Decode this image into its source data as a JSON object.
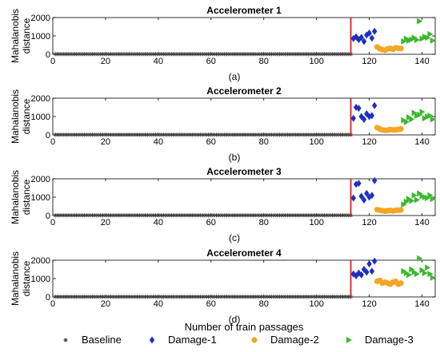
{
  "chart_data": [
    {
      "type": "scatter",
      "title": "Accelerometer 1",
      "caption": "(a)",
      "ylabel": [
        "Mahalanobis",
        "distance"
      ],
      "xlim": [
        0,
        145
      ],
      "ylim": [
        0,
        2000
      ],
      "xticks": [
        0,
        20,
        40,
        60,
        80,
        100,
        120,
        140
      ],
      "yticks": [
        0,
        1000,
        2000
      ],
      "threshold_x": 113,
      "series": [
        {
          "name": "Baseline",
          "x_start": 1,
          "x_end": 113,
          "value": 10
        },
        {
          "name": "Damage-1",
          "x": [
            114,
            115,
            116,
            117,
            118,
            119,
            120,
            121,
            122
          ],
          "values": [
            860,
            950,
            800,
            920,
            700,
            1050,
            1150,
            880,
            1250
          ]
        },
        {
          "name": "Damage-2",
          "x": [
            123,
            124,
            125,
            126,
            127,
            128,
            129,
            130,
            131,
            132
          ],
          "values": [
            400,
            300,
            250,
            220,
            300,
            320,
            270,
            350,
            330,
            310
          ]
        },
        {
          "name": "Damage-3",
          "x": [
            133,
            134,
            135,
            136,
            137,
            138,
            139,
            140,
            141,
            142,
            143,
            144
          ],
          "values": [
            700,
            850,
            750,
            800,
            900,
            780,
            1800,
            850,
            950,
            900,
            1100,
            750
          ]
        }
      ]
    },
    {
      "type": "scatter",
      "title": "Accelerometer 2",
      "caption": "(b)",
      "ylabel": [
        "Mahalanobis",
        "distance"
      ],
      "xlim": [
        0,
        145
      ],
      "ylim": [
        0,
        2000
      ],
      "xticks": [
        0,
        20,
        40,
        60,
        80,
        100,
        120,
        140
      ],
      "yticks": [
        0,
        1000,
        2000
      ],
      "threshold_x": 113,
      "series": [
        {
          "name": "Baseline",
          "x_start": 1,
          "x_end": 113,
          "value": 10
        },
        {
          "name": "Damage-1",
          "x": [
            114,
            115,
            116,
            117,
            118,
            119,
            120,
            121,
            122
          ],
          "values": [
            900,
            1500,
            1450,
            1000,
            850,
            1150,
            1000,
            1050,
            1600
          ]
        },
        {
          "name": "Damage-2",
          "x": [
            123,
            124,
            125,
            126,
            127,
            128,
            129,
            130,
            131,
            132
          ],
          "values": [
            400,
            320,
            270,
            250,
            260,
            300,
            270,
            280,
            300,
            330
          ]
        },
        {
          "name": "Damage-3",
          "x": [
            133,
            134,
            135,
            136,
            137,
            138,
            139,
            140,
            141,
            142,
            143,
            144
          ],
          "values": [
            800,
            700,
            950,
            850,
            1200,
            1050,
            1100,
            1250,
            900,
            1000,
            1050,
            850
          ]
        }
      ]
    },
    {
      "type": "scatter",
      "title": "Accelerometer 3",
      "caption": "(c)",
      "ylabel": [
        "Mahalanobis",
        "distance"
      ],
      "xlim": [
        0,
        145
      ],
      "ylim": [
        0,
        2000
      ],
      "xticks": [
        0,
        20,
        40,
        60,
        80,
        100,
        120,
        140
      ],
      "yticks": [
        0,
        1000,
        2000
      ],
      "threshold_x": 113,
      "series": [
        {
          "name": "Baseline",
          "x_start": 1,
          "x_end": 113,
          "value": 10
        },
        {
          "name": "Damage-1",
          "x": [
            114,
            115,
            116,
            117,
            118,
            119,
            120,
            121,
            122
          ],
          "values": [
            950,
            1700,
            1750,
            1050,
            850,
            1200,
            1000,
            1100,
            1900
          ]
        },
        {
          "name": "Damage-2",
          "x": [
            123,
            124,
            125,
            126,
            127,
            128,
            129,
            130,
            131,
            132
          ],
          "values": [
            320,
            290,
            260,
            240,
            260,
            280,
            250,
            280,
            290,
            300
          ]
        },
        {
          "name": "Damage-3",
          "x": [
            133,
            134,
            135,
            136,
            137,
            138,
            139,
            140,
            141,
            142,
            143,
            144
          ],
          "values": [
            600,
            750,
            900,
            800,
            1100,
            850,
            1200,
            1050,
            1000,
            950,
            1100,
            900
          ]
        }
      ]
    },
    {
      "type": "scatter",
      "title": "Accelerometer 4",
      "caption": "(d)",
      "ylabel": [
        "Mahalanobis",
        "distance"
      ],
      "xlim": [
        0,
        145
      ],
      "ylim": [
        0,
        2000
      ],
      "xticks": [
        0,
        20,
        40,
        60,
        80,
        100,
        120,
        140
      ],
      "yticks": [
        0,
        1000,
        2000
      ],
      "threshold_x": 113,
      "series": [
        {
          "name": "Baseline",
          "x_start": 1,
          "x_end": 113,
          "value": 10
        },
        {
          "name": "Damage-1",
          "x": [
            114,
            115,
            116,
            117,
            118,
            119,
            120,
            121,
            122
          ],
          "values": [
            1250,
            1150,
            1300,
            1200,
            1500,
            1350,
            1800,
            1400,
            1950
          ]
        },
        {
          "name": "Damage-2",
          "x": [
            123,
            124,
            125,
            126,
            127,
            128,
            129,
            130,
            131,
            132
          ],
          "values": [
            850,
            900,
            750,
            800,
            750,
            700,
            800,
            850,
            700,
            750
          ]
        },
        {
          "name": "Damage-3",
          "x": [
            133,
            134,
            135,
            136,
            137,
            138,
            139,
            140,
            141,
            142,
            143,
            144
          ],
          "values": [
            1400,
            1300,
            1200,
            1500,
            1350,
            1250,
            2100,
            1450,
            1300,
            1600,
            1250,
            1050
          ]
        }
      ]
    }
  ],
  "shared": {
    "xlabel": "Number of  train passages",
    "threshold_color": "#e41a1c"
  },
  "legend": {
    "placement": "bottom",
    "items": [
      {
        "name": "Baseline",
        "marker": "asterisk",
        "color": "#333333"
      },
      {
        "name": "Damage-1",
        "marker": "diamond",
        "color": "#1f2fbf"
      },
      {
        "name": "Damage-2",
        "marker": "circle",
        "color": "#f5a623"
      },
      {
        "name": "Damage-3",
        "marker": "triangle-right",
        "color": "#3cb82e"
      }
    ]
  }
}
